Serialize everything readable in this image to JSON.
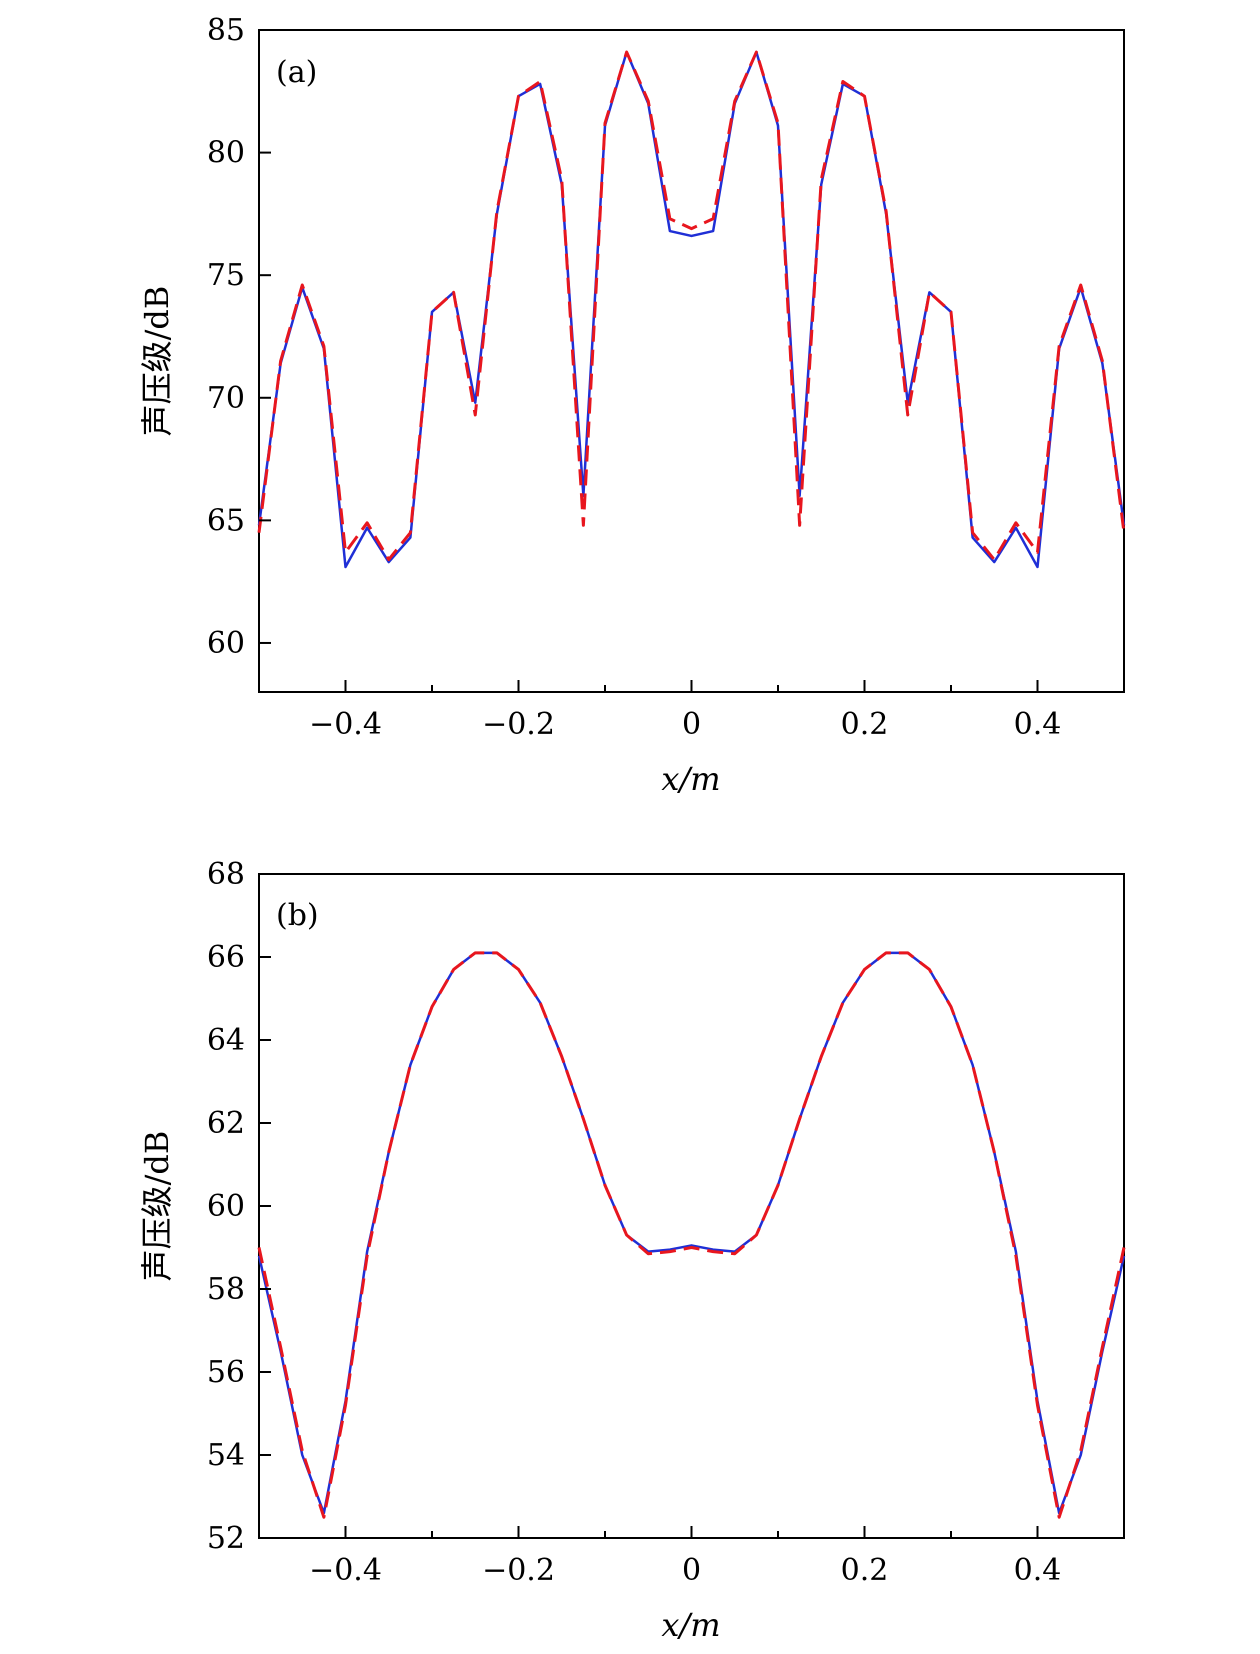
{
  "chart_data": [
    {
      "type": "line",
      "panel_label": "(a)",
      "xlabel": "x/m",
      "ylabel": "声压级/dB",
      "xlim": [
        -0.5,
        0.5
      ],
      "ylim": [
        58,
        85
      ],
      "xticks": [
        -0.4,
        -0.2,
        0,
        0.2,
        0.4
      ],
      "xtick_labels": [
        "−0.4",
        "−0.2",
        "0",
        "0.2",
        "0.4"
      ],
      "yticks": [
        60,
        65,
        70,
        75,
        80,
        85
      ],
      "ytick_labels": [
        "60",
        "65",
        "70",
        "75",
        "80",
        "85"
      ],
      "grid": false,
      "x": [
        -0.5,
        -0.475,
        -0.45,
        -0.425,
        -0.4,
        -0.375,
        -0.35,
        -0.325,
        -0.3,
        -0.275,
        -0.25,
        -0.225,
        -0.2,
        -0.175,
        -0.15,
        -0.125,
        -0.1,
        -0.075,
        -0.05,
        -0.025,
        0,
        0.025,
        0.05,
        0.075,
        0.1,
        0.125,
        0.15,
        0.175,
        0.2,
        0.225,
        0.25,
        0.275,
        0.3,
        0.325,
        0.35,
        0.375,
        0.4,
        0.425,
        0.45,
        0.475,
        0.5
      ],
      "series": [
        {
          "color": "#1f2fd6",
          "style": "solid",
          "values": [
            64.8,
            71.4,
            74.5,
            72.0,
            63.1,
            64.7,
            63.3,
            64.3,
            73.5,
            74.3,
            69.8,
            77.5,
            82.3,
            82.8,
            78.7,
            66.0,
            81.1,
            84.1,
            82.0,
            76.8,
            76.6,
            76.8,
            82.0,
            84.1,
            81.1,
            66.0,
            78.7,
            82.8,
            82.3,
            77.5,
            69.8,
            74.3,
            73.5,
            64.3,
            63.3,
            64.7,
            63.1,
            72.0,
            74.5,
            71.4,
            64.8
          ]
        },
        {
          "color": "#e8161e",
          "style": "dashed",
          "values": [
            64.5,
            71.5,
            74.6,
            72.1,
            63.7,
            64.9,
            63.4,
            64.5,
            73.5,
            74.3,
            69.3,
            77.6,
            82.3,
            82.9,
            78.9,
            64.8,
            81.2,
            84.1,
            82.1,
            77.3,
            76.9,
            77.3,
            82.1,
            84.1,
            81.2,
            64.8,
            78.9,
            82.9,
            82.3,
            77.6,
            69.3,
            74.3,
            73.5,
            64.5,
            63.4,
            64.9,
            63.7,
            72.1,
            74.6,
            71.5,
            64.5
          ]
        }
      ]
    },
    {
      "type": "line",
      "panel_label": "(b)",
      "xlabel": "x/m",
      "ylabel": "声压级/dB",
      "xlim": [
        -0.5,
        0.5
      ],
      "ylim": [
        52,
        68
      ],
      "xticks": [
        -0.4,
        -0.2,
        0,
        0.2,
        0.4
      ],
      "xtick_labels": [
        "−0.4",
        "−0.2",
        "0",
        "0.2",
        "0.4"
      ],
      "yticks": [
        52,
        54,
        56,
        58,
        60,
        62,
        64,
        66,
        68
      ],
      "ytick_labels": [
        "52",
        "54",
        "56",
        "58",
        "60",
        "62",
        "64",
        "66",
        "68"
      ],
      "grid": false,
      "x": [
        -0.5,
        -0.475,
        -0.45,
        -0.425,
        -0.4,
        -0.375,
        -0.35,
        -0.325,
        -0.3,
        -0.275,
        -0.25,
        -0.225,
        -0.2,
        -0.175,
        -0.15,
        -0.125,
        -0.1,
        -0.075,
        -0.05,
        -0.025,
        0,
        0.025,
        0.05,
        0.075,
        0.1,
        0.125,
        0.15,
        0.175,
        0.2,
        0.225,
        0.25,
        0.275,
        0.3,
        0.325,
        0.35,
        0.375,
        0.4,
        0.425,
        0.45,
        0.475,
        0.5
      ],
      "series": [
        {
          "color": "#1f2fd6",
          "style": "solid",
          "values": [
            58.8,
            56.5,
            54.0,
            52.6,
            55.3,
            58.9,
            61.3,
            63.4,
            64.8,
            65.7,
            66.1,
            66.1,
            65.7,
            64.9,
            63.6,
            62.1,
            60.5,
            59.3,
            58.9,
            58.95,
            59.05,
            58.95,
            58.9,
            59.3,
            60.5,
            62.1,
            63.6,
            64.9,
            65.7,
            66.1,
            66.1,
            65.7,
            64.8,
            63.4,
            61.3,
            58.9,
            55.3,
            52.6,
            54.0,
            56.5,
            58.8
          ]
        },
        {
          "color": "#e8161e",
          "style": "dashed",
          "values": [
            59.0,
            56.6,
            54.1,
            52.5,
            55.2,
            58.8,
            61.3,
            63.4,
            64.8,
            65.7,
            66.1,
            66.1,
            65.7,
            64.9,
            63.6,
            62.1,
            60.5,
            59.3,
            58.85,
            58.9,
            59.0,
            58.9,
            58.85,
            59.3,
            60.5,
            62.1,
            63.6,
            64.9,
            65.7,
            66.1,
            66.1,
            65.7,
            64.8,
            63.4,
            61.3,
            58.8,
            55.2,
            52.5,
            54.1,
            56.6,
            59.0
          ]
        }
      ]
    }
  ]
}
